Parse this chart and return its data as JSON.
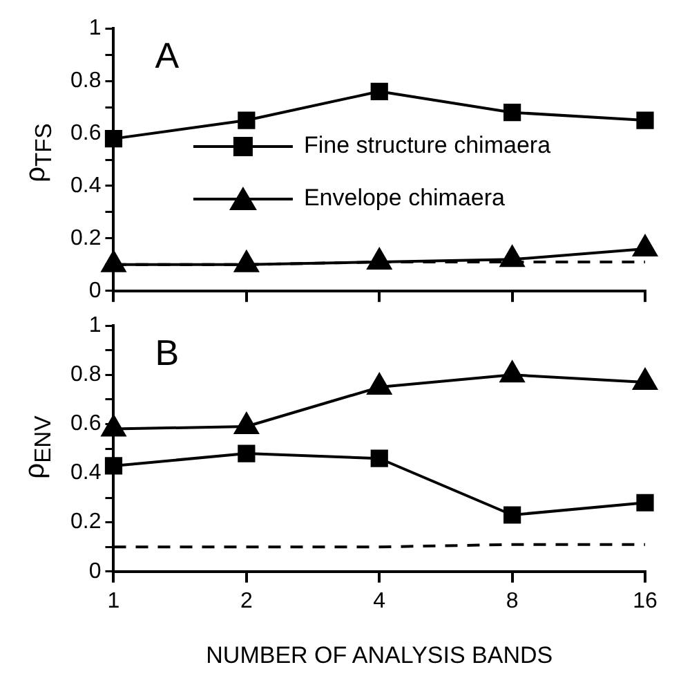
{
  "chart_data": [
    {
      "type": "line",
      "title": "A",
      "ylabel": "ρ$_{TFS}$",
      "categories": [
        "1",
        "2",
        "4",
        "8",
        "16"
      ],
      "ylim": [
        0,
        1
      ],
      "yticks": [
        0,
        {
          "value": 0.1,
          "label": null
        },
        0.2,
        {
          "value": 0.3,
          "label": null
        },
        0.4,
        {
          "value": 0.5,
          "label": null
        },
        0.6,
        {
          "value": 0.7,
          "label": null
        },
        0.8,
        {
          "value": 0.9,
          "label": null
        },
        1
      ],
      "tick_labels": "y",
      "legend": "center",
      "grid": false,
      "series": [
        {
          "name": "Fine structure chimaera",
          "color": "#000000",
          "marker": "square",
          "values": [
            0.58,
            0.65,
            0.76,
            0.68,
            0.65
          ]
        },
        {
          "name": "Envelope chimaera",
          "color": "#000000",
          "marker": "triangle",
          "values": [
            0.1,
            0.1,
            0.11,
            0.12,
            0.16
          ]
        },
        {
          "color": "#000000",
          "marker": "none",
          "line_style": "dashed",
          "values": [
            0.1,
            0.1,
            0.11,
            0.11,
            0.11
          ]
        }
      ]
    },
    {
      "type": "line",
      "title": "B",
      "ylabel": "ρ$_{ENV}$",
      "xlabel": "NUMBER OF ANALYSIS BANDS",
      "categories": [
        "1",
        "2",
        "4",
        "8",
        "16"
      ],
      "ylim": [
        0,
        1
      ],
      "yticks": [
        0,
        {
          "value": 0.1,
          "label": null
        },
        0.2,
        {
          "value": 0.3,
          "label": null
        },
        0.4,
        {
          "value": 0.5,
          "label": null
        },
        0.6,
        {
          "value": 0.7,
          "label": null
        },
        0.8,
        {
          "value": 0.9,
          "label": null
        },
        1
      ],
      "grid": false,
      "series": [
        {
          "color": "#000000",
          "marker": "square",
          "values": [
            0.43,
            0.48,
            0.46,
            0.23,
            0.28
          ]
        },
        {
          "color": "#000000",
          "marker": "triangle",
          "values": [
            0.58,
            0.59,
            0.75,
            0.8,
            0.77
          ]
        },
        {
          "color": "#000000",
          "marker": "none",
          "line_style": "dashed",
          "values": [
            0.1,
            0.1,
            0.1,
            0.11,
            0.11
          ]
        }
      ]
    }
  ]
}
